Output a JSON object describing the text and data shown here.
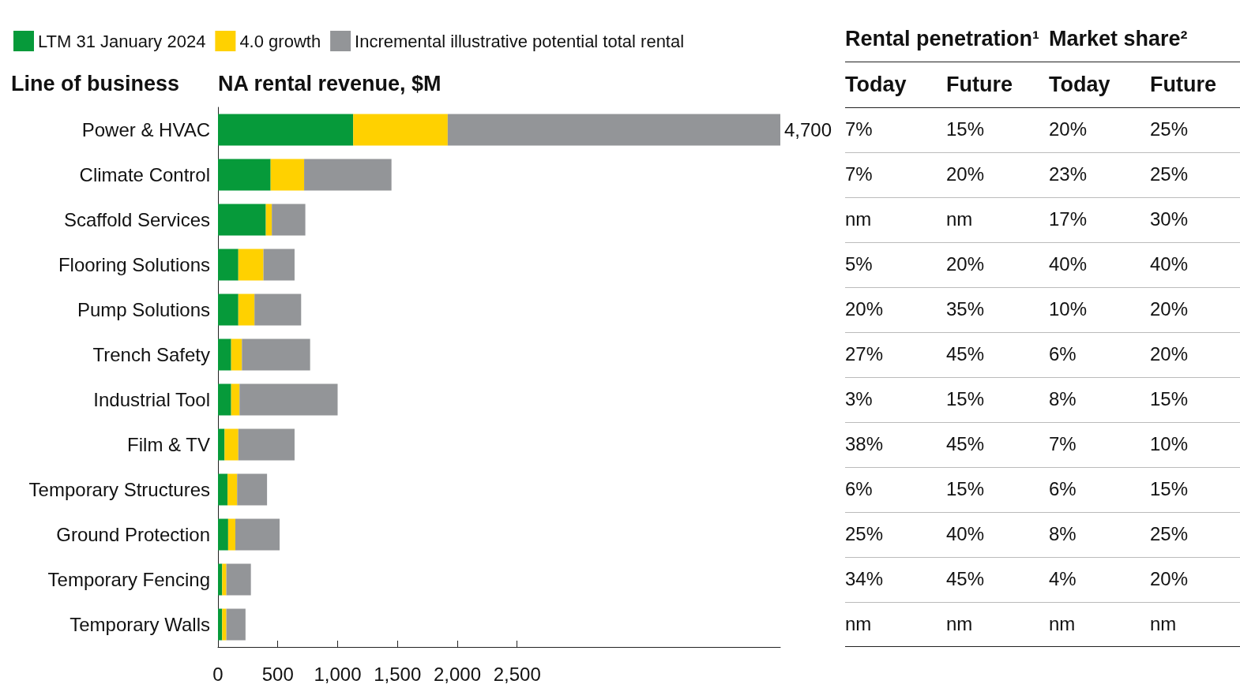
{
  "chart_data": [
    {
      "type": "bar",
      "orientation": "horizontal",
      "stacked": true,
      "ylabel": "Line of business",
      "xlabel": "NA rental revenue, $M",
      "categories": [
        "Power & HVAC",
        "Climate Control",
        "Scaffold Services",
        "Flooring Solutions",
        "Pump Solutions",
        "Trench Safety",
        "Industrial Tool",
        "Film & TV",
        "Temporary Structures",
        "Ground Protection",
        "Temporary Fencing",
        "Temporary Walls"
      ],
      "series": [
        {
          "name": "LTM 31 January 2024",
          "color": "#069a3a",
          "values": [
            1130,
            440,
            400,
            170,
            170,
            110,
            110,
            55,
            80,
            85,
            35,
            35
          ]
        },
        {
          "name": "4.0 growth",
          "color": "#ffd100",
          "values": [
            790,
            280,
            50,
            210,
            135,
            90,
            70,
            115,
            80,
            60,
            35,
            35
          ]
        },
        {
          "name": "Incremental illustrative potential total rental",
          "color": "#939598",
          "values": [
            2780,
            730,
            280,
            260,
            390,
            570,
            820,
            470,
            250,
            370,
            205,
            160
          ]
        }
      ],
      "totals": [
        "4,700",
        null,
        null,
        null,
        null,
        null,
        null,
        null,
        null,
        null,
        null,
        null
      ],
      "xlim": [
        0,
        4700
      ],
      "xticks": [
        0,
        500,
        {
          "value": 1000,
          "label": "1,000"
        },
        {
          "value": 1500,
          "label": "1,500"
        },
        {
          "value": 2000,
          "label": "2,000"
        },
        {
          "value": 2500,
          "label": "2,500"
        }
      ],
      "grid": false,
      "legend": "top left"
    },
    {
      "type": "other",
      "title": "Rental penetration¹",
      "categories": [
        "Today",
        "Future"
      ],
      "cell_labels": [
        [
          "7%",
          "15%"
        ],
        [
          "7%",
          "20%"
        ],
        [
          "nm",
          "nm"
        ],
        [
          "5%",
          "20%"
        ],
        [
          "20%",
          "35%"
        ],
        [
          "27%",
          "45%"
        ],
        [
          "3%",
          "15%"
        ],
        [
          "38%",
          "45%"
        ],
        [
          "6%",
          "15%"
        ],
        [
          "25%",
          "40%"
        ],
        [
          "34%",
          "45%"
        ],
        [
          "nm",
          "nm"
        ]
      ]
    },
    {
      "type": "other",
      "title": "Market share²",
      "categories": [
        "Today",
        "Future"
      ],
      "cell_labels": [
        [
          "20%",
          "25%"
        ],
        [
          "23%",
          "25%"
        ],
        [
          "17%",
          "30%"
        ],
        [
          "40%",
          "40%"
        ],
        [
          "10%",
          "20%"
        ],
        [
          "6%",
          "20%"
        ],
        [
          "8%",
          "15%"
        ],
        [
          "7%",
          "10%"
        ],
        [
          "6%",
          "15%"
        ],
        [
          "8%",
          "25%"
        ],
        [
          "4%",
          "20%"
        ],
        [
          "nm",
          "nm"
        ]
      ]
    }
  ]
}
